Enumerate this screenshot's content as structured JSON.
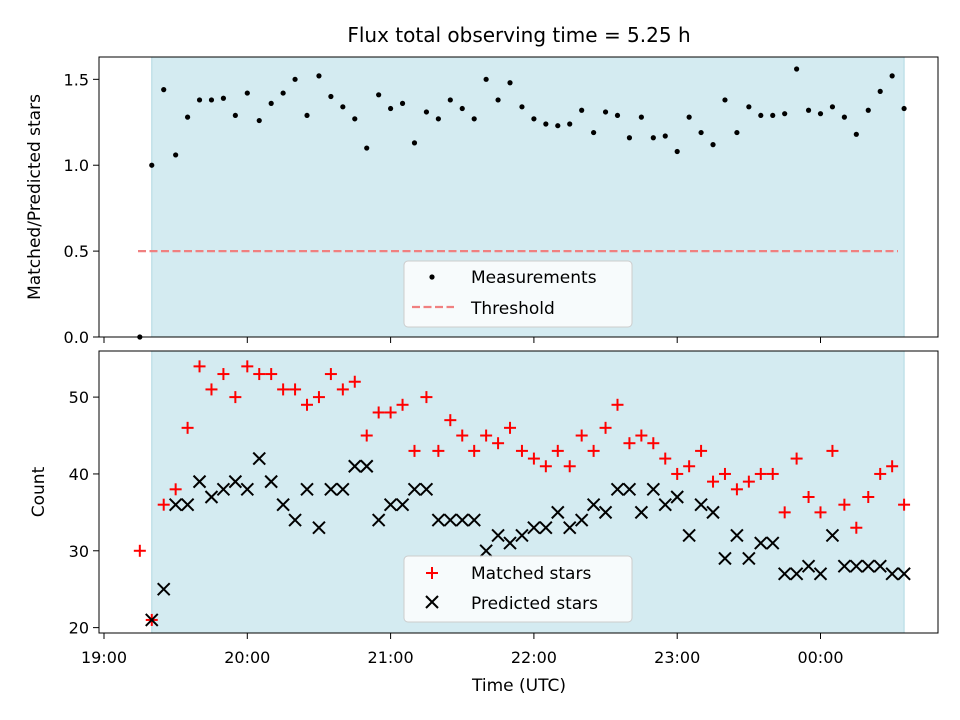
{
  "chart_data": {
    "type": "scatter",
    "title": "Flux total observing time = 5.25 h",
    "xlabel": "Time (UTC)",
    "x_ticks": [
      "19:00",
      "20:00",
      "21:00",
      "22:00",
      "23:00",
      "00:00"
    ],
    "observing_window": {
      "start": "19:20",
      "end": "00:35"
    },
    "colors": {
      "window": "#d4ebf1",
      "matched": "#ff0000",
      "predicted": "#000000",
      "threshold": "#f08080",
      "measurements": "#000000"
    },
    "panels": [
      {
        "ylabel": "Matched/Predicted stars",
        "ylim": [
          0,
          1.63
        ],
        "yticks": [
          "0.0",
          "0.5",
          "1.0",
          "1.5"
        ],
        "legend": "lower-center",
        "threshold": {
          "name": "Threshold",
          "value": 0.5
        },
        "series": [
          {
            "name": "Measurements",
            "marker": "dot",
            "x": [
              "19:15",
              "19:20",
              "19:25",
              "19:30",
              "19:35",
              "19:40",
              "19:45",
              "19:50",
              "19:55",
              "20:00",
              "20:05",
              "20:10",
              "20:15",
              "20:20",
              "20:25",
              "20:30",
              "20:35",
              "20:40",
              "20:45",
              "20:50",
              "20:55",
              "21:00",
              "21:05",
              "21:10",
              "21:15",
              "21:20",
              "21:25",
              "21:30",
              "21:35",
              "21:40",
              "21:45",
              "21:50",
              "21:55",
              "22:00",
              "22:05",
              "22:10",
              "22:15",
              "22:20",
              "22:25",
              "22:30",
              "22:35",
              "22:40",
              "22:45",
              "22:50",
              "22:55",
              "23:00",
              "23:05",
              "23:10",
              "23:15",
              "23:20",
              "23:25",
              "23:30",
              "23:35",
              "23:40",
              "23:45",
              "23:50",
              "23:55",
              "00:00",
              "00:05",
              "00:10",
              "00:15",
              "00:20",
              "00:25",
              "00:30",
              "00:35"
            ],
            "y": [
              0.0,
              1.0,
              1.44,
              1.06,
              1.28,
              1.38,
              1.38,
              1.39,
              1.29,
              1.42,
              1.26,
              1.36,
              1.42,
              1.5,
              1.29,
              1.52,
              1.4,
              1.34,
              1.27,
              1.1,
              1.41,
              1.33,
              1.36,
              1.13,
              1.31,
              1.27,
              1.38,
              1.33,
              1.27,
              1.5,
              1.38,
              1.48,
              1.34,
              1.27,
              1.24,
              1.23,
              1.24,
              1.32,
              1.19,
              1.31,
              1.29,
              1.16,
              1.28,
              1.16,
              1.17,
              1.08,
              1.28,
              1.19,
              1.12,
              1.38,
              1.19,
              1.34,
              1.29,
              1.29,
              1.3,
              1.56,
              1.32,
              1.3,
              1.34,
              1.28,
              1.18,
              1.32,
              1.43,
              1.52,
              1.33
            ]
          }
        ]
      },
      {
        "ylabel": "Count",
        "ylim": [
          19.3,
          56.0
        ],
        "yticks": [
          "20",
          "30",
          "40",
          "50"
        ],
        "legend": "lower-center",
        "series": [
          {
            "name": "Matched stars",
            "marker": "plus",
            "x": [
              "19:15",
              "19:20",
              "19:25",
              "19:30",
              "19:35",
              "19:40",
              "19:45",
              "19:50",
              "19:55",
              "20:00",
              "20:05",
              "20:10",
              "20:15",
              "20:20",
              "20:25",
              "20:30",
              "20:35",
              "20:40",
              "20:45",
              "20:50",
              "20:55",
              "21:00",
              "21:05",
              "21:10",
              "21:15",
              "21:20",
              "21:25",
              "21:30",
              "21:35",
              "21:40",
              "21:45",
              "21:50",
              "21:55",
              "22:00",
              "22:05",
              "22:10",
              "22:15",
              "22:20",
              "22:25",
              "22:30",
              "22:35",
              "22:40",
              "22:45",
              "22:50",
              "22:55",
              "23:00",
              "23:05",
              "23:10",
              "23:15",
              "23:20",
              "23:25",
              "23:30",
              "23:35",
              "23:40",
              "23:45",
              "23:50",
              "23:55",
              "00:00",
              "00:05",
              "00:10",
              "00:15",
              "00:20",
              "00:25",
              "00:30",
              "00:35"
            ],
            "y": [
              30,
              21,
              36,
              38,
              46,
              54,
              51,
              53,
              50,
              54,
              53,
              53,
              51,
              51,
              49,
              50,
              53,
              51,
              52,
              45,
              48,
              48,
              49,
              43,
              50,
              43,
              47,
              45,
              43,
              45,
              44,
              46,
              43,
              42,
              41,
              43,
              41,
              45,
              43,
              46,
              49,
              44,
              45,
              44,
              42,
              40,
              41,
              43,
              39,
              40,
              38,
              39,
              40,
              40,
              35,
              42,
              37,
              35,
              43,
              36,
              33,
              37,
              40,
              41,
              36
            ]
          },
          {
            "name": "Predicted stars",
            "marker": "x",
            "x": [
              "19:20",
              "19:25",
              "19:30",
              "19:35",
              "19:40",
              "19:45",
              "19:50",
              "19:55",
              "20:00",
              "20:05",
              "20:10",
              "20:15",
              "20:20",
              "20:25",
              "20:30",
              "20:35",
              "20:40",
              "20:45",
              "20:50",
              "20:55",
              "21:00",
              "21:05",
              "21:10",
              "21:15",
              "21:20",
              "21:25",
              "21:30",
              "21:35",
              "21:40",
              "21:45",
              "21:50",
              "21:55",
              "22:00",
              "22:05",
              "22:10",
              "22:15",
              "22:20",
              "22:25",
              "22:30",
              "22:35",
              "22:40",
              "22:45",
              "22:50",
              "22:55",
              "23:00",
              "23:05",
              "23:10",
              "23:15",
              "23:20",
              "23:25",
              "23:30",
              "23:35",
              "23:40",
              "23:45",
              "23:50",
              "23:55",
              "00:00",
              "00:05",
              "00:10",
              "00:15",
              "00:20",
              "00:25",
              "00:30",
              "00:35"
            ],
            "y": [
              21,
              25,
              36,
              36,
              39,
              37,
              38,
              39,
              38,
              42,
              39,
              36,
              34,
              38,
              33,
              38,
              38,
              41,
              41,
              34,
              36,
              36,
              38,
              38,
              34,
              34,
              34,
              34,
              30,
              32,
              31,
              32,
              33,
              33,
              35,
              33,
              34,
              36,
              35,
              38,
              38,
              35,
              38,
              36,
              37,
              32,
              36,
              35,
              29,
              32,
              29,
              31,
              31,
              27,
              27,
              28,
              27,
              32,
              28,
              28,
              28,
              28,
              27,
              27
            ]
          }
        ]
      }
    ]
  }
}
